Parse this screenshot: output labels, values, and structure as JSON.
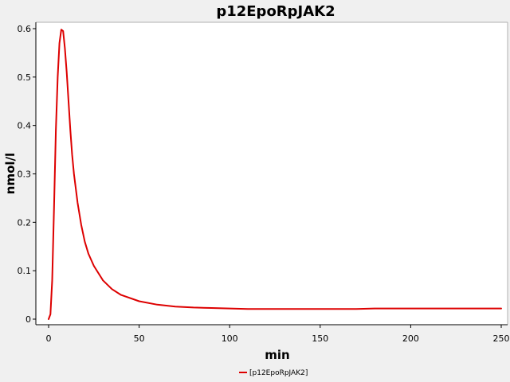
{
  "chart_data": {
    "type": "line",
    "title": "p12EpoRpJAK2",
    "xlabel": "min",
    "ylabel": "nmol/l",
    "xlim": [
      0,
      250
    ],
    "ylim": [
      0,
      0.6
    ],
    "xticks": [
      0,
      50,
      100,
      150,
      200,
      250
    ],
    "yticks": [
      0,
      0.1,
      0.2,
      0.3,
      0.4,
      0.5,
      0.6
    ],
    "grid": false,
    "legend_position": "bottom-center",
    "series": [
      {
        "name": "[p12EpoRpJAK2]",
        "color": "#dd0000",
        "x": [
          0,
          1,
          2,
          3,
          4,
          5,
          6,
          7,
          8,
          9,
          10,
          11,
          12,
          13,
          14,
          16,
          18,
          20,
          22,
          25,
          30,
          35,
          40,
          50,
          60,
          70,
          80,
          90,
          100,
          110,
          120,
          130,
          140,
          150,
          160,
          170,
          180,
          200,
          220,
          250
        ],
        "y": [
          0,
          0.01,
          0.08,
          0.23,
          0.39,
          0.5,
          0.57,
          0.598,
          0.595,
          0.56,
          0.51,
          0.45,
          0.39,
          0.34,
          0.3,
          0.24,
          0.195,
          0.16,
          0.135,
          0.11,
          0.08,
          0.062,
          0.05,
          0.037,
          0.03,
          0.026,
          0.024,
          0.023,
          0.022,
          0.021,
          0.021,
          0.021,
          0.021,
          0.021,
          0.021,
          0.021,
          0.022,
          0.022,
          0.022,
          0.022
        ]
      }
    ]
  }
}
